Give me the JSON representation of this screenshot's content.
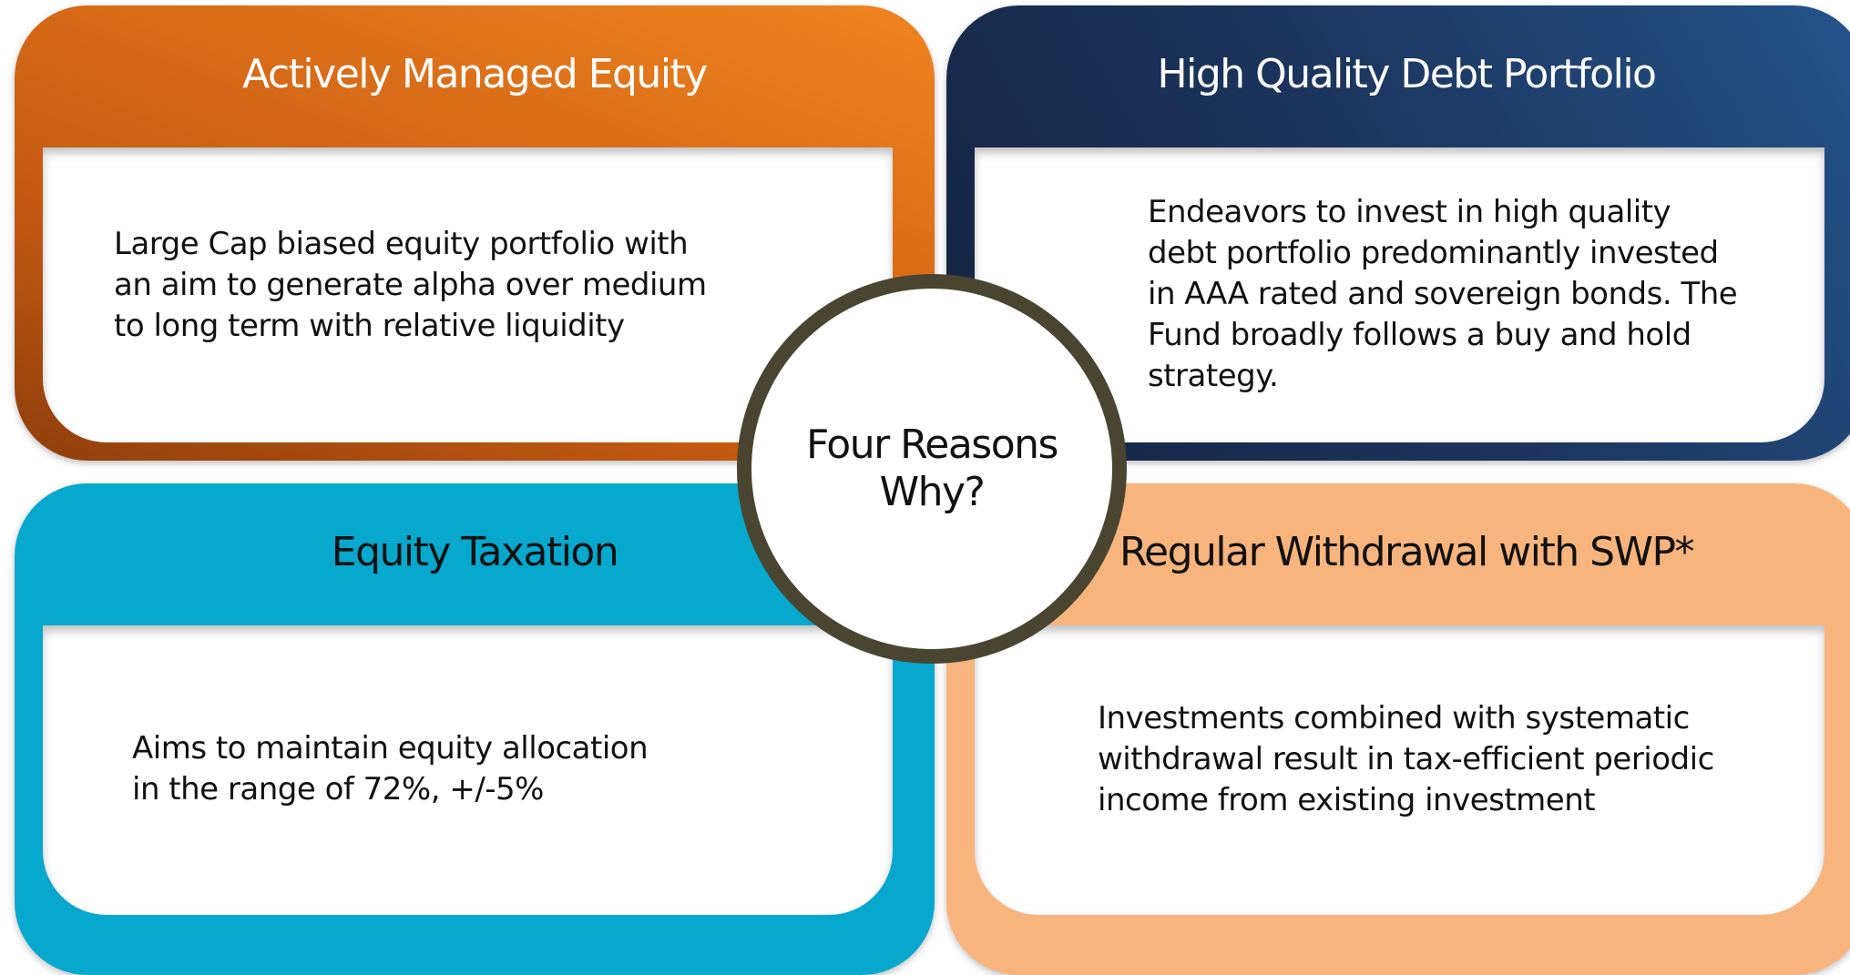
{
  "center": {
    "lines": [
      "Four Reasons",
      "Why?"
    ]
  },
  "cards": [
    {
      "title": "Actively Managed Equity",
      "lines": [
        "Large Cap biased equity portfolio with",
        "an aim to generate alpha over medium",
        "to long term with relative liquidity"
      ]
    },
    {
      "title": "High Quality Debt Portfolio",
      "lines": [
        "Endeavors to invest in high quality",
        "debt portfolio predominantly invested",
        "in AAA rated and sovereign bonds. The",
        "Fund broadly follows a buy and hold",
        "strategy."
      ]
    },
    {
      "title": "Equity Taxation",
      "lines": [
        "Aims to maintain equity allocation",
        "in the range of 72%, +/-5%"
      ]
    },
    {
      "title": "Regular Withdrawal with SWP*",
      "lines": [
        "Investments combined with systematic",
        "withdrawal result in tax-efficient periodic",
        "income from existing investment"
      ]
    }
  ]
}
